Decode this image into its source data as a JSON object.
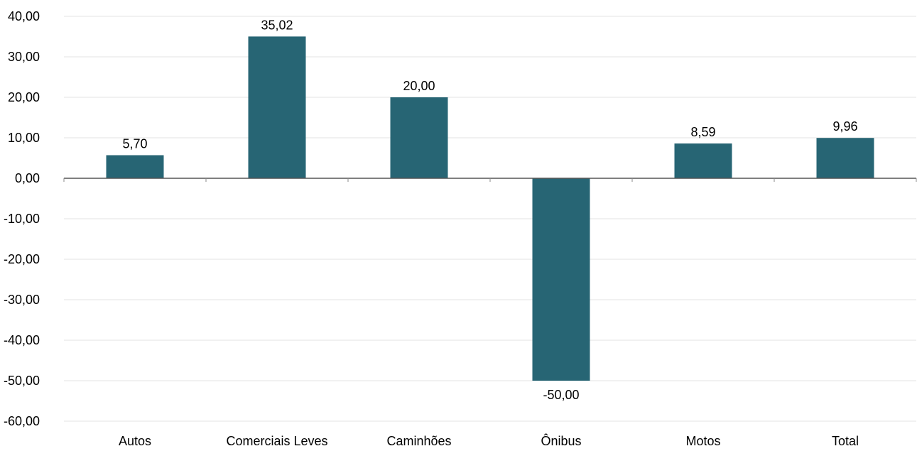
{
  "chart_data": {
    "type": "bar",
    "categories": [
      "Autos",
      "Comerciais Leves",
      "Caminhões",
      "Ônibus",
      "Motos",
      "Total"
    ],
    "values": [
      5.7,
      35.02,
      20.0,
      -50.0,
      8.59,
      9.96
    ],
    "value_labels": [
      "5,70",
      "35,02",
      "20,00",
      "-50,00",
      "8,59",
      "9,96"
    ],
    "y_ticks": [
      40,
      30,
      20,
      10,
      0,
      -10,
      -20,
      -30,
      -40,
      -50,
      -60
    ],
    "y_tick_labels": [
      "40,00",
      "30,00",
      "20,00",
      "10,00",
      "0,00",
      "-10,00",
      "-20,00",
      "-30,00",
      "-40,00",
      "-50,00",
      "-60,00"
    ],
    "ylim": [
      -60,
      40
    ],
    "title": "",
    "xlabel": "",
    "ylabel": "",
    "grid": true,
    "legend": "none",
    "bar_color": "#276574"
  }
}
